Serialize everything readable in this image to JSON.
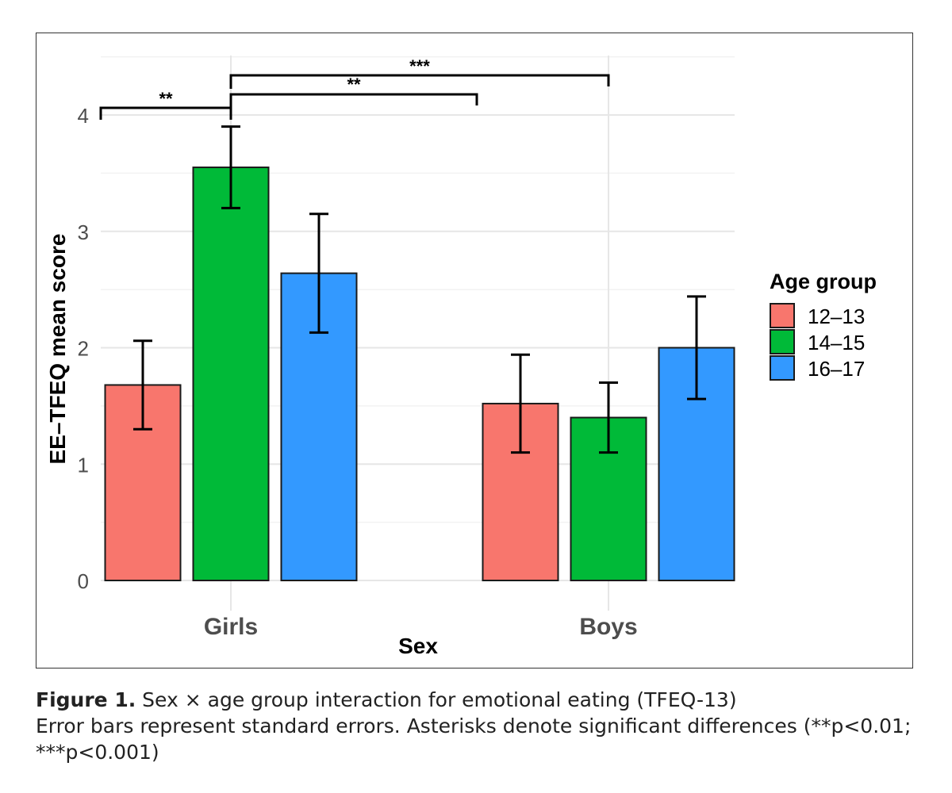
{
  "chart_data": {
    "type": "bar",
    "title": "",
    "xlabel": "Sex",
    "ylabel": "EE–TFEQ mean score",
    "ylim": [
      0,
      4.5
    ],
    "yticks": [
      0,
      1,
      2,
      3,
      4
    ],
    "grid": true,
    "categories": [
      "Girls",
      "Boys"
    ],
    "legend": {
      "title": "Age group",
      "position": "right"
    },
    "series": [
      {
        "name": "12–13",
        "color": "#F8766D",
        "values": [
          1.68,
          1.52
        ],
        "errors": [
          0.38,
          0.42
        ]
      },
      {
        "name": "14–15",
        "color": "#00BA38",
        "values": [
          3.55,
          1.4
        ],
        "errors": [
          0.35,
          0.3
        ]
      },
      {
        "name": "16–17",
        "color": "#3399FF",
        "values": [
          2.64,
          2.0
        ],
        "errors": [
          0.51,
          0.44
        ]
      }
    ],
    "significance": [
      {
        "from": "Girls 12–13",
        "to": "Girls 14–15",
        "label": "**"
      },
      {
        "from": "Girls 14–15",
        "to": "Boys 12–13",
        "label": "**"
      },
      {
        "from": "Girls 14–15",
        "to": "Boys 14–15",
        "label": "***"
      }
    ]
  },
  "caption": {
    "label": "Figure 1.",
    "title": " Sex × age group interaction for emotional eating (TFEQ-13)",
    "note": "Error bars represent standard errors. Asterisks denote significant differences (**p<0.01; ***p<0.001)"
  }
}
